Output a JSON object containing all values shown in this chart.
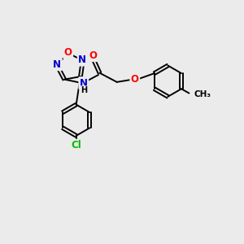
{
  "bg_color": "#ebebeb",
  "bond_color": "#000000",
  "bond_width": 1.4,
  "atom_colors": {
    "O": "#ff0000",
    "N": "#0000cc",
    "Cl": "#00bb00",
    "C": "#000000",
    "H": "#000000"
  },
  "font_size_atom": 8.5,
  "font_size_small": 7.5,
  "xlim": [
    0,
    10
  ],
  "ylim": [
    0,
    10
  ]
}
